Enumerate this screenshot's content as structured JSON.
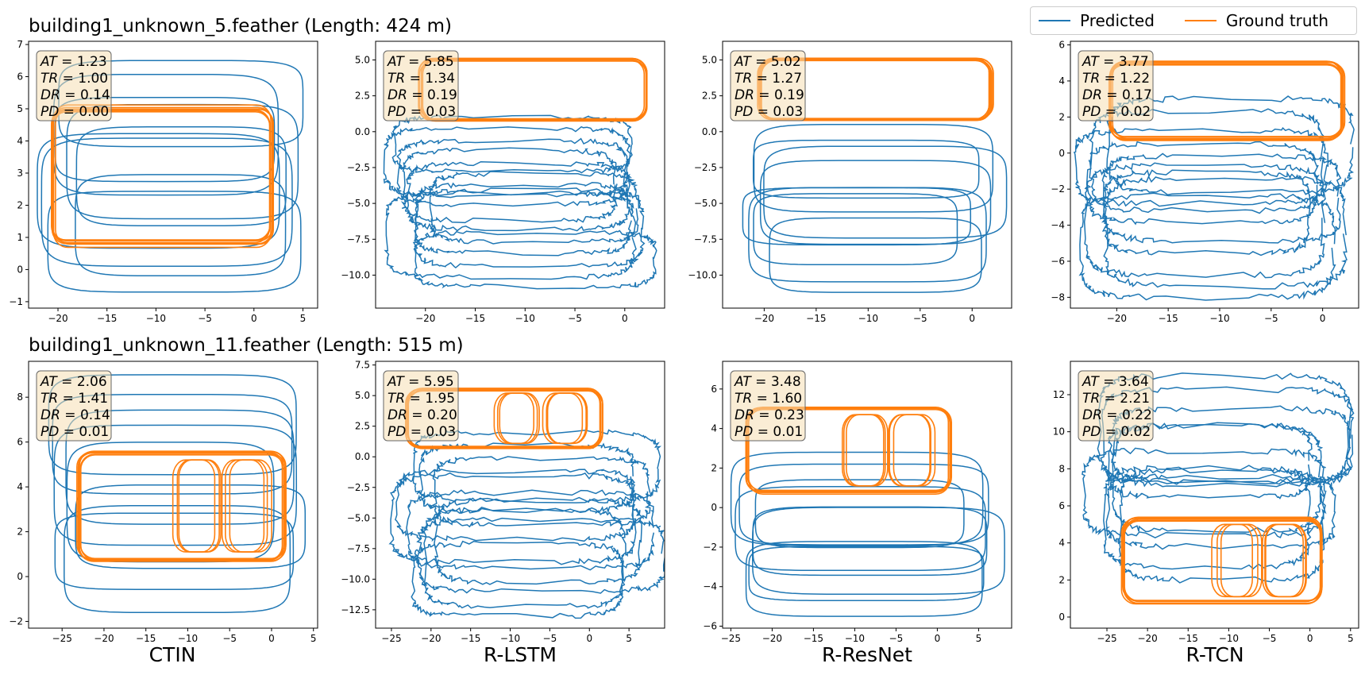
{
  "legend": [
    {
      "label": "Predicted",
      "color": "#1f77b4"
    },
    {
      "label": "Ground truth",
      "color": "#ff7f0e"
    }
  ],
  "row_titles": [
    "building1_unknown_5.feather (Length: 424 m)",
    "building1_unknown_11.feather (Length: 515 m)"
  ],
  "column_labels": [
    "CTIN",
    "R-LSTM",
    "R-ResNet",
    "R-TCN"
  ],
  "chart_data": [
    {
      "type": "line",
      "row": 0,
      "col": 0,
      "model": "CTIN",
      "xlim": [
        -23,
        6.5
      ],
      "ylim": [
        -1.2,
        7.1
      ],
      "xticks": [
        -20,
        -15,
        -10,
        -5,
        0,
        5
      ],
      "yticks": [
        -1,
        0,
        1,
        2,
        3,
        4,
        5,
        6,
        7
      ],
      "metrics": {
        "AT": "1.23",
        "TR": "1.00",
        "DR": "0.14",
        "PD": "0.00"
      },
      "gt_rect": {
        "x0": -20.5,
        "x1": 1.8,
        "y0": 0.8,
        "y1": 5.0
      },
      "pred_bounds": {
        "x0": -21.8,
        "x1": 5.2,
        "y0": -0.7,
        "y1": 6.5
      },
      "pred_loops": 9
    },
    {
      "type": "line",
      "row": 0,
      "col": 1,
      "model": "R-LSTM",
      "xlim": [
        -25,
        4
      ],
      "ylim": [
        -12.3,
        6.3
      ],
      "xticks": [
        -20,
        -15,
        -10,
        -5,
        0
      ],
      "yticks": [
        -10.0,
        -7.5,
        -5.0,
        -2.5,
        0.0,
        2.5,
        5.0
      ],
      "metrics": {
        "AT": "5.85",
        "TR": "1.34",
        "DR": "0.19",
        "PD": "0.03"
      },
      "gt_rect": {
        "x0": -20.5,
        "x1": 2.0,
        "y0": 0.8,
        "y1": 5.0
      },
      "pred_bounds": {
        "x0": -23.0,
        "x1": 2.5,
        "y0": -10.8,
        "y1": 1.0
      },
      "pred_loops": 10
    },
    {
      "type": "line",
      "row": 0,
      "col": 2,
      "model": "R-ResNet",
      "xlim": [
        -24,
        3.8
      ],
      "ylim": [
        -12.3,
        6.3
      ],
      "xticks": [
        -20,
        -15,
        -10,
        -5,
        0
      ],
      "yticks": [
        -10.0,
        -7.5,
        -5.0,
        -2.5,
        0.0,
        2.5,
        5.0
      ],
      "metrics": {
        "AT": "5.02",
        "TR": "1.27",
        "DR": "0.19",
        "PD": "0.03"
      },
      "gt_rect": {
        "x0": -20.5,
        "x1": 1.8,
        "y0": 0.8,
        "y1": 5.0
      },
      "pred_bounds": {
        "x0": -22.0,
        "x1": 2.5,
        "y0": -11.2,
        "y1": 0.5
      },
      "pred_loops": 8
    },
    {
      "type": "line",
      "row": 0,
      "col": 3,
      "model": "R-TCN",
      "xlim": [
        -24.5,
        3.5
      ],
      "ylim": [
        -8.6,
        6.2
      ],
      "xticks": [
        -20,
        -15,
        -10,
        -5,
        0
      ],
      "yticks": [
        -8,
        -6,
        -4,
        -2,
        0,
        2,
        4,
        6
      ],
      "metrics": {
        "AT": "3.77",
        "TR": "1.22",
        "DR": "0.17",
        "PD": "0.02"
      },
      "gt_rect": {
        "x0": -20.5,
        "x1": 2.0,
        "y0": 0.8,
        "y1": 5.0
      },
      "pred_bounds": {
        "x0": -23.0,
        "x1": 2.0,
        "y0": -8.0,
        "y1": 3.0
      },
      "pred_loops": 9
    },
    {
      "type": "line",
      "row": 1,
      "col": 0,
      "model": "CTIN",
      "xlim": [
        -29,
        5.5
      ],
      "ylim": [
        -2.3,
        9.6
      ],
      "xticks": [
        -25,
        -20,
        -15,
        -10,
        -5,
        0,
        5
      ],
      "yticks": [
        -2,
        0,
        2,
        4,
        6,
        8
      ],
      "metrics": {
        "AT": "2.06",
        "TR": "1.41",
        "DR": "0.14",
        "PD": "0.01"
      },
      "gt_rect": {
        "x0": -23.0,
        "x1": 1.5,
        "y0": 0.8,
        "y1": 5.5
      },
      "gt_dividers": [
        -10.0,
        -4.0
      ],
      "pred_bounds": {
        "x0": -27.0,
        "x1": 4.0,
        "y0": -1.6,
        "y1": 9.0
      },
      "pred_loops": 8
    },
    {
      "type": "line",
      "row": 1,
      "col": 1,
      "model": "R-LSTM",
      "xlim": [
        -27,
        9.5
      ],
      "ylim": [
        -14,
        7.8
      ],
      "xticks": [
        -25,
        -20,
        -15,
        -10,
        -5,
        0,
        5
      ],
      "yticks": [
        -12.5,
        -10.0,
        -7.5,
        -5.0,
        -2.5,
        0.0,
        2.5,
        5.0,
        7.5
      ],
      "metrics": {
        "AT": "5.95",
        "TR": "1.95",
        "DR": "0.20",
        "PD": "0.03"
      },
      "gt_rect": {
        "x0": -23.0,
        "x1": 1.5,
        "y0": 0.8,
        "y1": 5.5
      },
      "gt_dividers": [
        -10.0,
        -4.0
      ],
      "pred_bounds": {
        "x0": -24.0,
        "x1": 8.0,
        "y0": -13.0,
        "y1": 2.0
      },
      "pred_loops": 10
    },
    {
      "type": "line",
      "row": 1,
      "col": 2,
      "model": "R-ResNet",
      "xlim": [
        -26,
        9
      ],
      "ylim": [
        -6.1,
        7.4
      ],
      "xticks": [
        -25,
        -20,
        -15,
        -10,
        -5,
        0,
        5
      ],
      "yticks": [
        -6,
        -4,
        -2,
        0,
        2,
        4,
        6
      ],
      "metrics": {
        "AT": "3.48",
        "TR": "1.60",
        "DR": "0.23",
        "PD": "0.01"
      },
      "gt_rect": {
        "x0": -23.0,
        "x1": 1.5,
        "y0": 0.8,
        "y1": 5.0
      },
      "gt_dividers": [
        -10.0,
        -4.0
      ],
      "pred_bounds": {
        "x0": -24.5,
        "x1": 7.0,
        "y0": -5.5,
        "y1": 2.8
      },
      "pred_loops": 8
    },
    {
      "type": "line",
      "row": 1,
      "col": 3,
      "model": "R-TCN",
      "xlim": [
        -29.5,
        6
      ],
      "ylim": [
        -0.6,
        13.8
      ],
      "xticks": [
        -25,
        -20,
        -15,
        -10,
        -5,
        0,
        5
      ],
      "yticks": [
        0,
        2,
        4,
        6,
        8,
        10,
        12
      ],
      "metrics": {
        "AT": "3.64",
        "TR": "2.21",
        "DR": "0.22",
        "PD": "0.02"
      },
      "gt_rect": {
        "x0": -23.0,
        "x1": 1.5,
        "y0": 0.8,
        "y1": 5.3
      },
      "gt_dividers": [
        -10.0,
        -4.0
      ],
      "pred_bounds": {
        "x0": -27.0,
        "x1": 4.5,
        "y0": 2.0,
        "y1": 13.0
      },
      "pred_loops": 9
    }
  ]
}
